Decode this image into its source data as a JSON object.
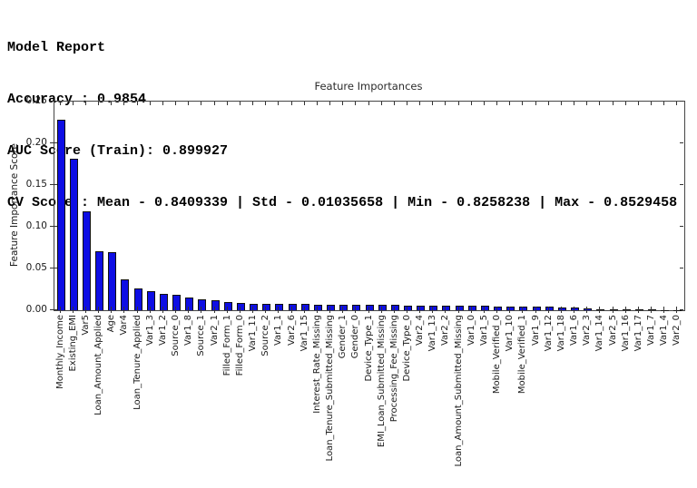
{
  "report": {
    "title": "Model Report",
    "accuracy": "Accuracy : 0.9854",
    "auc": "AUC Score (Train): 0.899927",
    "cv": "CV Score : Mean - 0.8409339 | Std - 0.01035658 | Min - 0.8258238 | Max - 0.8529458"
  },
  "chart_data": {
    "type": "bar",
    "title": "Feature Importances",
    "xlabel": "",
    "ylabel": "Feature Importance Score",
    "ylim": [
      0,
      0.25
    ],
    "ytick_labels": [
      "0.00",
      "0.05",
      "0.10",
      "0.15",
      "0.20",
      "0.25"
    ],
    "grid": false,
    "legend": "none",
    "bar_color": "#0e0ee4",
    "bar_edge_color": "#101010",
    "categories": [
      "Monthly_Income",
      "Existing_EMI",
      "Var5",
      "Loan_Amount_Applied",
      "Age",
      "Var4",
      "Loan_Tenure_Applied",
      "Var1_3",
      "Var1_2",
      "Source_0",
      "Var1_8",
      "Source_1",
      "Var2_1",
      "Filled_Form_1",
      "Filled_Form_0",
      "Var1_11",
      "Source_2",
      "Var1_1",
      "Var2_6",
      "Var1_15",
      "Interest_Rate_Missing",
      "Loan_Tenure_Submitted_Missing",
      "Gender_1",
      "Gender_0",
      "Device_Type_1",
      "EMI_Loan_Submitted_Missing",
      "Processing_Fee_Missing",
      "Device_Type_0",
      "Var2_4",
      "Var1_13",
      "Var2_2",
      "Loan_Amount_Submitted_Missing",
      "Var1_0",
      "Var1_5",
      "Mobile_Verified_0",
      "Var1_10",
      "Mobile_Verified_1",
      "Var1_9",
      "Var1_12",
      "Var1_18",
      "Var1_6",
      "Var2_3",
      "Var1_14",
      "Var2_5",
      "Var1_16",
      "Var1_17",
      "Var1_7",
      "Var1_4",
      "Var2_0"
    ],
    "values": [
      0.2283,
      0.1811,
      0.1186,
      0.0711,
      0.0693,
      0.0375,
      0.0264,
      0.0232,
      0.0193,
      0.0186,
      0.0153,
      0.0133,
      0.012,
      0.0102,
      0.0089,
      0.008,
      0.0078,
      0.0073,
      0.0072,
      0.0071,
      0.007,
      0.0067,
      0.0065,
      0.0064,
      0.0062,
      0.0061,
      0.006,
      0.0058,
      0.0057,
      0.0056,
      0.0055,
      0.0053,
      0.0051,
      0.005,
      0.0049,
      0.0047,
      0.0046,
      0.0043,
      0.004,
      0.0037,
      0.0029,
      0.0024,
      0.0015,
      0.0012,
      0.001,
      0.0008,
      0.0006,
      0.0003,
      0.0002
    ]
  }
}
